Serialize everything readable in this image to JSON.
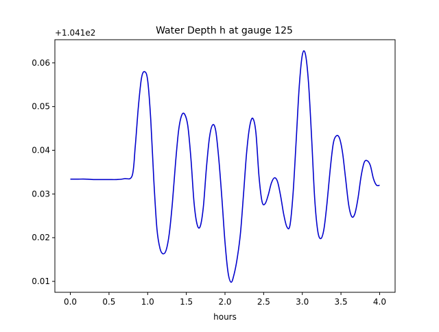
{
  "chart_data": {
    "type": "line",
    "title": "Water Depth h at gauge 125",
    "xlabel": "hours",
    "ylabel": "",
    "offset_label": "+1.041e2",
    "xlim": [
      -0.2,
      4.2
    ],
    "ylim": [
      0.0075,
      0.0653
    ],
    "x_ticks": [
      0.0,
      0.5,
      1.0,
      1.5,
      2.0,
      2.5,
      3.0,
      3.5,
      4.0
    ],
    "x_tick_labels": [
      "0.0",
      "0.5",
      "1.0",
      "1.5",
      "2.0",
      "2.5",
      "3.0",
      "3.5",
      "4.0"
    ],
    "y_ticks": [
      0.01,
      0.02,
      0.03,
      0.04,
      0.05,
      0.06
    ],
    "y_tick_labels": [
      "0.01",
      "0.02",
      "0.03",
      "0.04",
      "0.05",
      "0.06"
    ],
    "grid": false,
    "series": [
      {
        "color": "#0000cc",
        "x": [
          0.0,
          0.1,
          0.2,
          0.3,
          0.4,
          0.5,
          0.6,
          0.7,
          0.8,
          0.84,
          0.88,
          0.92,
          0.96,
          1.0,
          1.04,
          1.08,
          1.12,
          1.16,
          1.2,
          1.24,
          1.28,
          1.32,
          1.36,
          1.4,
          1.44,
          1.48,
          1.52,
          1.56,
          1.6,
          1.64,
          1.68,
          1.72,
          1.76,
          1.8,
          1.84,
          1.88,
          1.92,
          1.96,
          2.0,
          2.04,
          2.08,
          2.12,
          2.16,
          2.2,
          2.24,
          2.28,
          2.32,
          2.36,
          2.4,
          2.44,
          2.48,
          2.52,
          2.56,
          2.6,
          2.64,
          2.68,
          2.72,
          2.76,
          2.8,
          2.84,
          2.88,
          2.92,
          2.96,
          3.0,
          3.04,
          3.08,
          3.12,
          3.16,
          3.2,
          3.24,
          3.28,
          3.32,
          3.36,
          3.4,
          3.44,
          3.48,
          3.52,
          3.56,
          3.6,
          3.64,
          3.68,
          3.72,
          3.76,
          3.8,
          3.84,
          3.88,
          3.92,
          3.96,
          4.0
        ],
        "y": [
          0.0334,
          0.0334,
          0.0334,
          0.0333,
          0.0333,
          0.0333,
          0.0333,
          0.0335,
          0.0342,
          0.041,
          0.05,
          0.0565,
          0.058,
          0.056,
          0.047,
          0.033,
          0.022,
          0.0175,
          0.0163,
          0.0172,
          0.021,
          0.028,
          0.037,
          0.0445,
          0.048,
          0.0482,
          0.0455,
          0.038,
          0.028,
          0.023,
          0.0226,
          0.027,
          0.036,
          0.043,
          0.0458,
          0.0445,
          0.038,
          0.029,
          0.019,
          0.012,
          0.0098,
          0.0118,
          0.0155,
          0.021,
          0.03,
          0.0395,
          0.0455,
          0.0473,
          0.044,
          0.034,
          0.0282,
          0.0278,
          0.0298,
          0.0325,
          0.0337,
          0.0328,
          0.0295,
          0.0253,
          0.0225,
          0.0228,
          0.03,
          0.042,
          0.0545,
          0.0618,
          0.062,
          0.0555,
          0.043,
          0.029,
          0.0215,
          0.0198,
          0.022,
          0.028,
          0.0355,
          0.0415,
          0.0433,
          0.0428,
          0.0395,
          0.0335,
          0.0275,
          0.0248,
          0.0255,
          0.029,
          0.034,
          0.0372,
          0.0376,
          0.0365,
          0.0335,
          0.032,
          0.032
        ]
      }
    ]
  }
}
